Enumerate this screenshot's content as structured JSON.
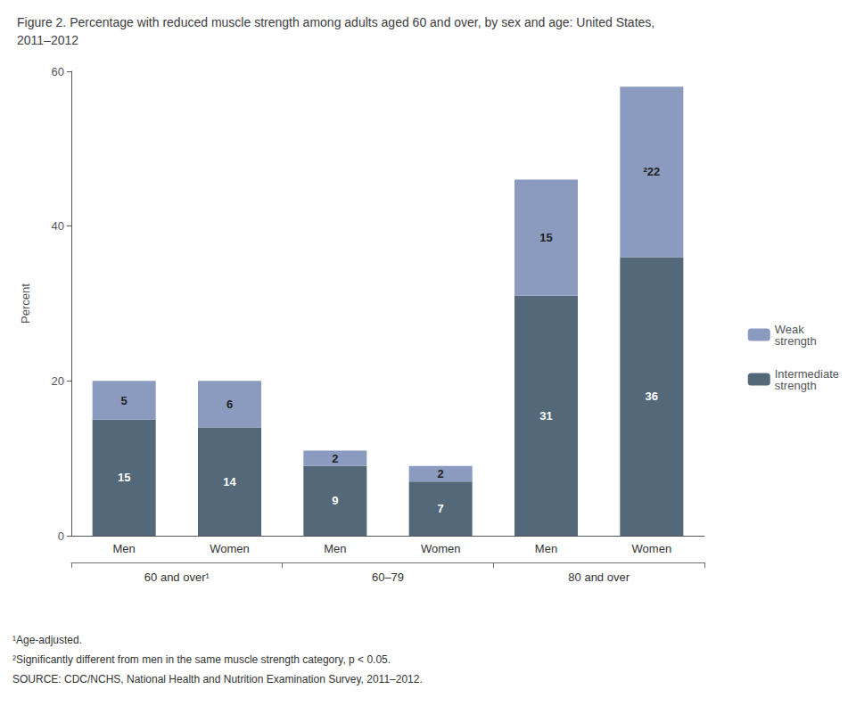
{
  "chart_data": {
    "type": "bar",
    "title": "Figure 2. Percentage with reduced muscle strength among adults aged 60 and over, by sex and age: United States,\n2011–2012",
    "ylabel": "Percent",
    "categories": [
      "Men",
      "Women",
      "Men",
      "Women",
      "Men",
      "Women"
    ],
    "groups": [
      "60 and over¹",
      "60–79",
      "80 and over"
    ],
    "series": [
      {
        "name": "Intermediate\nstrength",
        "color": "#536878",
        "values": [
          15,
          14,
          9,
          7,
          31,
          36
        ]
      },
      {
        "name": "Weak\nstrength",
        "color": "#8a9bbf",
        "values": [
          5,
          6,
          2,
          2,
          15,
          22
        ],
        "value_labels": [
          "5",
          "6",
          "2",
          "2",
          "15",
          "²22"
        ]
      }
    ],
    "stacked": true,
    "data_labels": true,
    "ylim": [
      0,
      60
    ],
    "yticks": [
      0,
      20,
      40,
      60
    ],
    "grid": false,
    "legend": "right",
    "footnotes": [
      "¹Age-adjusted.",
      "²Significantly different from men in the same muscle strength category, p < 0.05."
    ],
    "source": "SOURCE: CDC/NCHS, National Health and Nutrition Examination Survey, 2011–2012."
  }
}
